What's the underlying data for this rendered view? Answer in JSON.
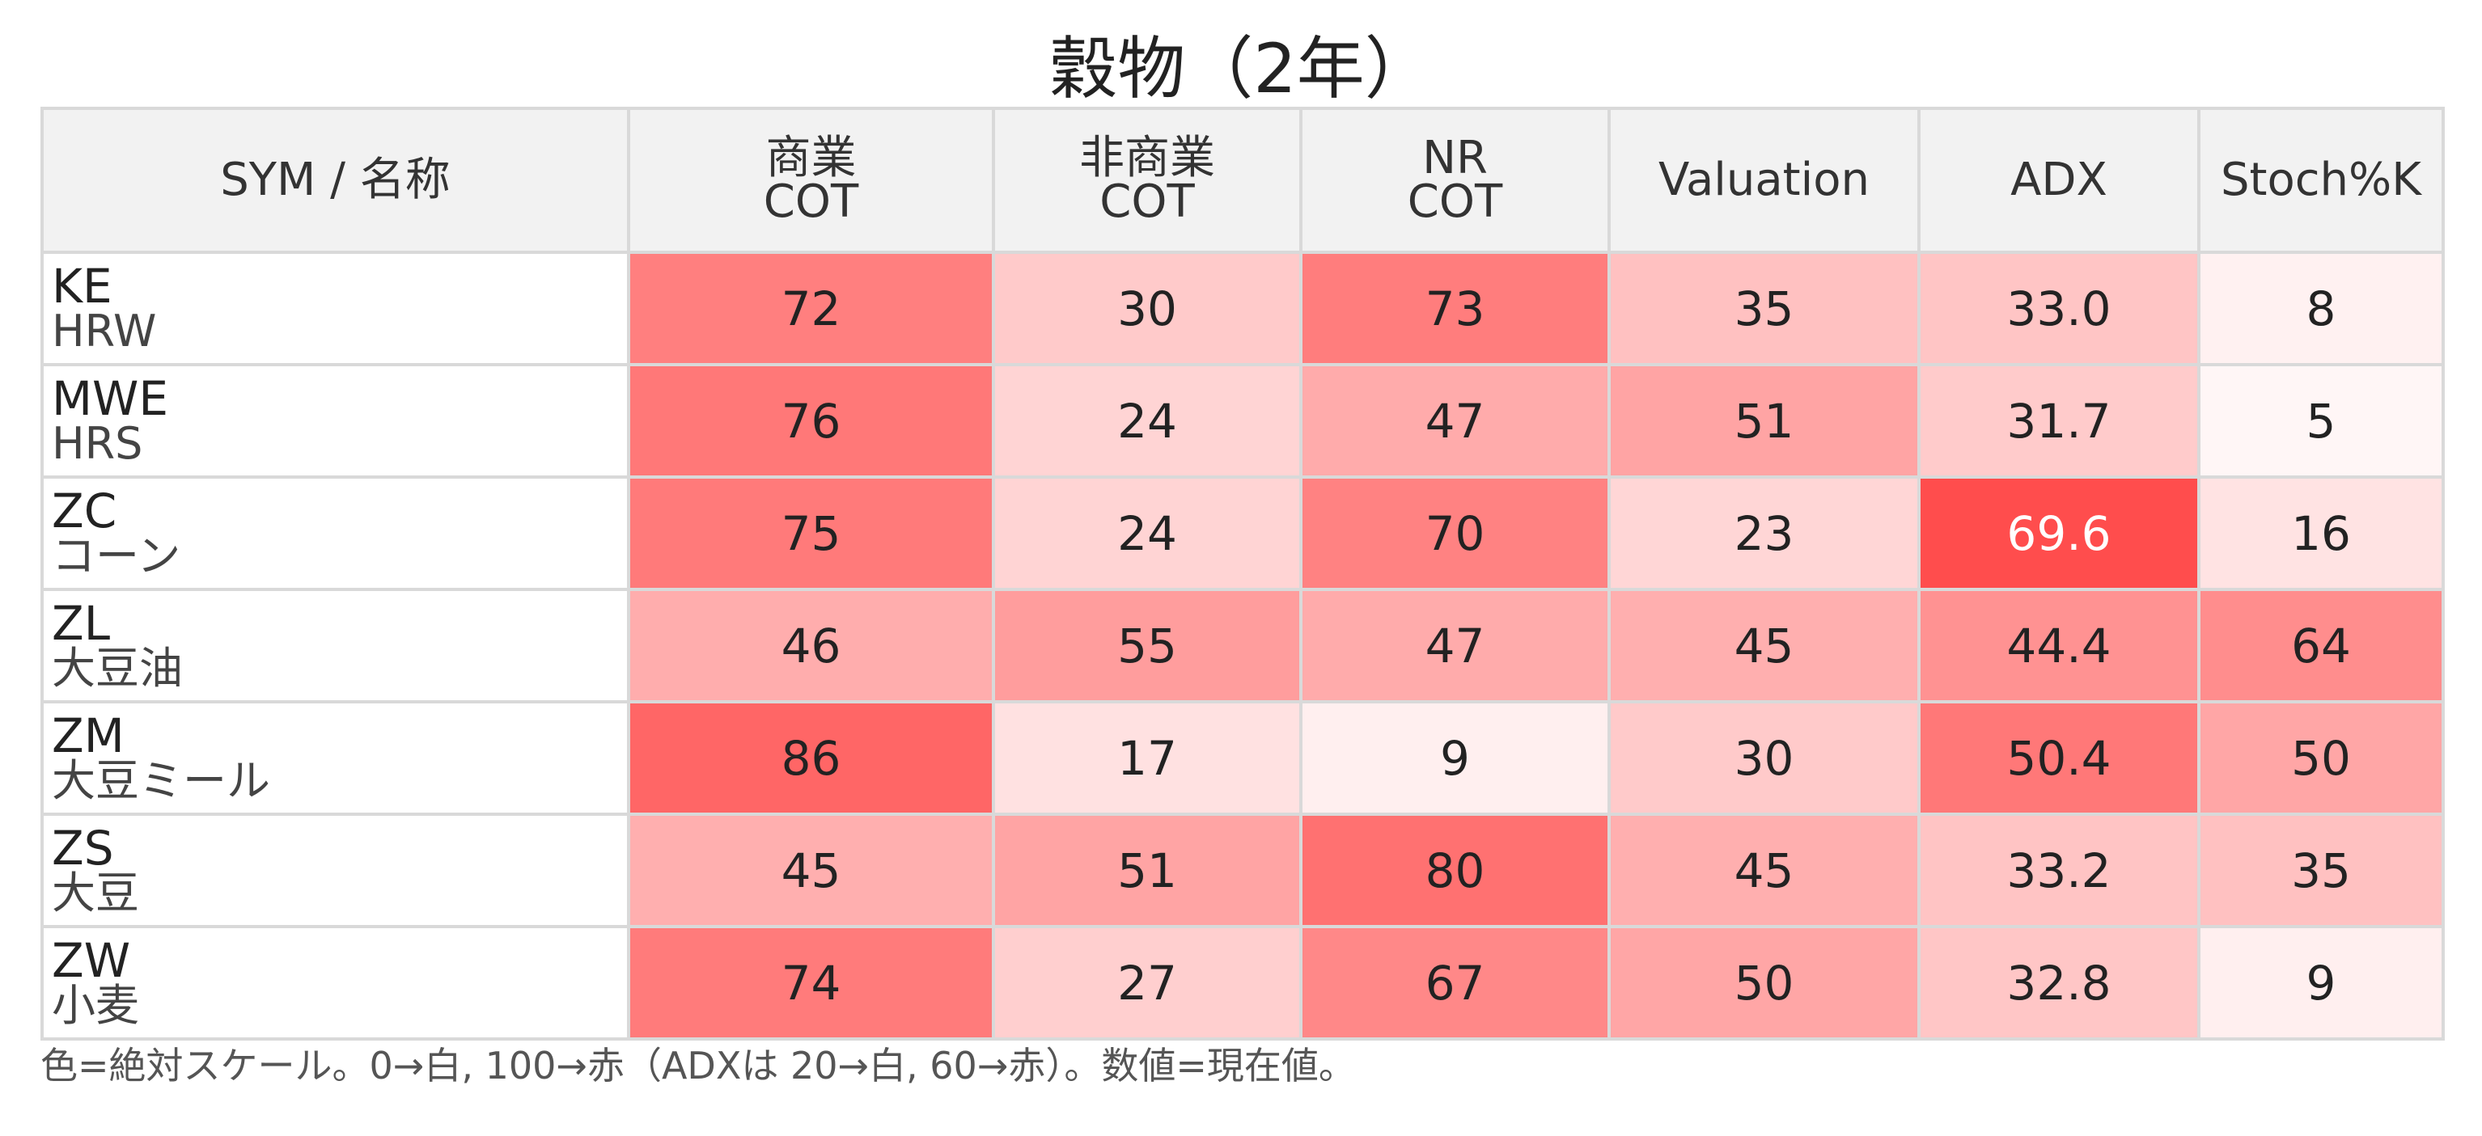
{
  "title": "穀物（2年）",
  "note": "色=絶対スケール。0→白, 100→赤（ADXは 20→白, 60→赤）。数値=現在値。",
  "chart_data": {
    "type": "table",
    "title": "穀物（2年）",
    "columns": [
      {
        "key": "sym",
        "lines": [
          "SYM / 名称"
        ]
      },
      {
        "key": "com_cot",
        "lines": [
          "商業",
          "COT"
        ]
      },
      {
        "key": "noncom_cot",
        "lines": [
          "非商業",
          "COT"
        ]
      },
      {
        "key": "nr_cot",
        "lines": [
          "NR",
          "COT"
        ]
      },
      {
        "key": "valuation",
        "lines": [
          "Valuation"
        ]
      },
      {
        "key": "adx",
        "lines": [
          "ADX"
        ]
      },
      {
        "key": "stoch",
        "lines": [
          "Stoch%K"
        ]
      }
    ],
    "rows": [
      {
        "sym": "KE",
        "name": "HRW",
        "values": [
          "72",
          "30",
          "73",
          "35",
          "33.0",
          "8"
        ]
      },
      {
        "sym": "MWE",
        "name": "HRS",
        "values": [
          "76",
          "24",
          "47",
          "51",
          "31.7",
          "5"
        ]
      },
      {
        "sym": "ZC",
        "name": "コーン",
        "values": [
          "75",
          "24",
          "70",
          "23",
          "69.6",
          "16"
        ]
      },
      {
        "sym": "ZL",
        "name": "大豆油",
        "values": [
          "46",
          "55",
          "47",
          "45",
          "44.4",
          "64"
        ]
      },
      {
        "sym": "ZM",
        "name": "大豆ミール",
        "values": [
          "86",
          "17",
          "9",
          "30",
          "50.4",
          "50"
        ]
      },
      {
        "sym": "ZS",
        "name": "大豆",
        "values": [
          "45",
          "51",
          "80",
          "45",
          "33.2",
          "35"
        ]
      },
      {
        "sym": "ZW",
        "name": "小麦",
        "values": [
          "74",
          "27",
          "67",
          "50",
          "32.8",
          "9"
        ]
      }
    ],
    "color_scale": {
      "low_color": "#ffffff",
      "high_color": "#ff4d4d",
      "default_range": [
        0,
        100
      ],
      "adx_range": [
        20,
        60
      ]
    }
  }
}
